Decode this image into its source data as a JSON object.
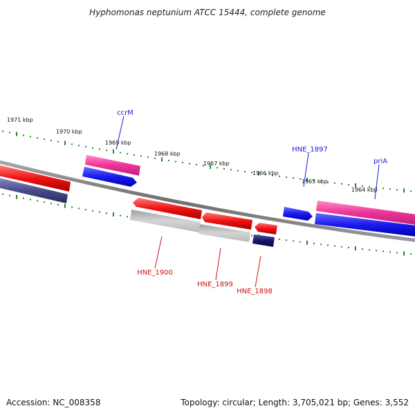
{
  "title": "Hyphomonas neptunium ATCC 15444, complete genome",
  "footer": {
    "accession": "Accession: NC_008358",
    "summary": "Topology: circular; Length: 3,705,021 bp; Genes: 3,552"
  },
  "colors": {
    "backbone": "#7a7a7a",
    "tick": "#1f8a1f",
    "forward_label": "#1a1acc",
    "reverse_label": "#cc1111",
    "pink": "#ee3399",
    "blue": "#1a1aee",
    "red": "#ee1111",
    "gray": "#b0b0b0",
    "navy": "#141470",
    "slate": "#4a4a8a"
  },
  "kbp_marks": [
    "1971 kbp",
    "1970 kbp",
    "1969 kbp",
    "1968 kbp",
    "1967 kbp",
    "1966 kbp",
    "1965 kbp",
    "1964 kbp"
  ],
  "genes": {
    "forward": [
      {
        "label": "ccrM",
        "color": "blue"
      },
      {
        "label": "HNE_1897",
        "color": "blue"
      },
      {
        "label": "priA",
        "color": "blue"
      }
    ],
    "reverse": [
      {
        "label": "HNE_1900",
        "color": "red"
      },
      {
        "label": "HNE_1899",
        "color": "red"
      },
      {
        "label": "HNE_1898",
        "color": "navy"
      }
    ]
  }
}
